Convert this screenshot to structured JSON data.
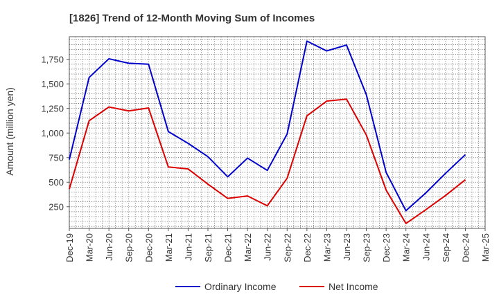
{
  "chart_data": {
    "type": "line",
    "title": "[1826]  Trend of 12-Month Moving Sum of Incomes",
    "ylabel": "Amount (million yen)",
    "xlabel": "",
    "ylim": [
      30,
      1980
    ],
    "yticks": [
      250,
      500,
      750,
      1000,
      1250,
      1500,
      1750
    ],
    "ytick_labels": [
      "250",
      "500",
      "750",
      "1,000",
      "1,250",
      "1,500",
      "1,750"
    ],
    "x_tick_labels": [
      "Dec-19",
      "Mar-20",
      "Jun-20",
      "Sep-20",
      "Dec-20",
      "Mar-21",
      "Jun-21",
      "Sep-21",
      "Dec-21",
      "Mar-22",
      "Jun-22",
      "Sep-22",
      "Dec-22",
      "Mar-23",
      "Jun-23",
      "Sep-23",
      "Dec-23",
      "Mar-24",
      "Jun-24",
      "Sep-24",
      "Dec-24",
      "Mar-25"
    ],
    "grid": true,
    "legend_position": "bottom-center",
    "series": [
      {
        "name": "Ordinary Income",
        "color": "#0000cc",
        "values": [
          730,
          1565,
          1755,
          1710,
          1700,
          1015,
          895,
          760,
          555,
          745,
          620,
          990,
          1935,
          1835,
          1895,
          1390,
          600,
          210,
          390,
          590,
          780
        ]
      },
      {
        "name": "Net Income",
        "color": "#dd0000",
        "values": [
          430,
          1125,
          1265,
          1225,
          1255,
          655,
          635,
          480,
          335,
          360,
          260,
          540,
          1175,
          1325,
          1345,
          980,
          420,
          80,
          220,
          365,
          525
        ]
      }
    ]
  }
}
